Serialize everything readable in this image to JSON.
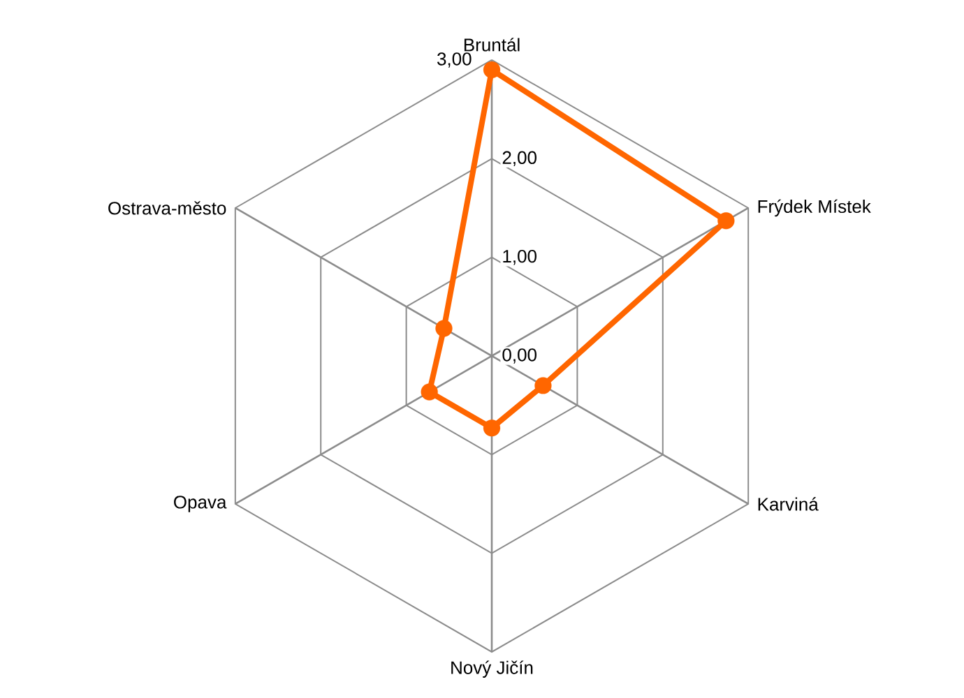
{
  "chart_data": {
    "type": "radar",
    "categories": [
      "Bruntál",
      "Frýdek Místek",
      "Karviná",
      "Nový Jičín",
      "Opava",
      "Ostrava-město"
    ],
    "series": [
      {
        "color": "#ff6600",
        "values": [
          2.9,
          2.74,
          0.6,
          0.73,
          0.73,
          0.56
        ]
      }
    ],
    "ylim": [
      0,
      3
    ],
    "yticks": [
      {
        "value": 0,
        "label": "0,00"
      },
      {
        "value": 1,
        "label": "1,00"
      },
      {
        "value": 2,
        "label": "2,00"
      },
      {
        "value": 3,
        "label": "3,00"
      }
    ],
    "grid": true,
    "marker": "circle",
    "line_style": "solid"
  }
}
